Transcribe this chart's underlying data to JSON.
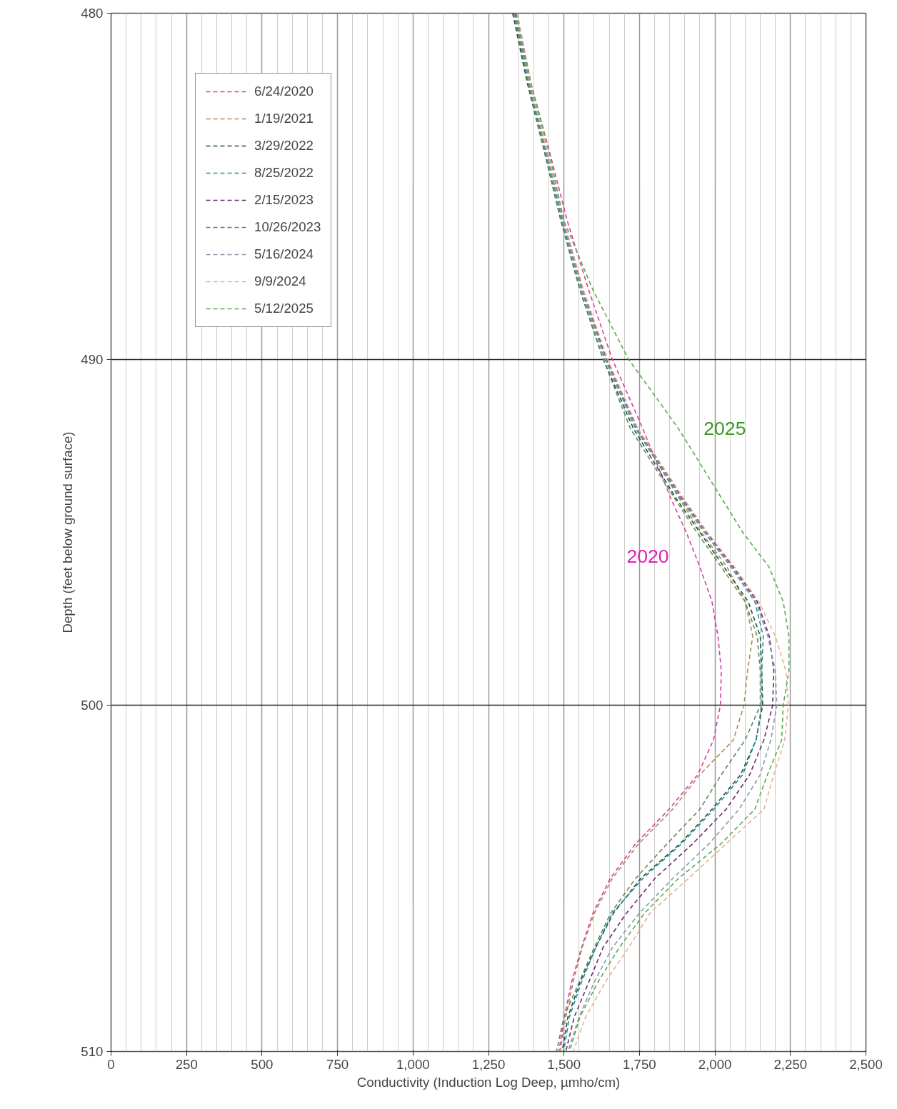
{
  "chart_data": {
    "type": "line",
    "xlabel": "Conductivity (Induction Log Deep, µmho/cm)",
    "ylabel": "Depth (feet below ground surface)",
    "xlim": [
      0,
      2500
    ],
    "ylim": [
      510,
      480
    ],
    "xticks": [
      0,
      250,
      500,
      750,
      {
        "value": 1000,
        "label": "1,000"
      },
      {
        "value": 1250,
        "label": "1,250"
      },
      {
        "value": 1500,
        "label": "1,500"
      },
      {
        "value": 1750,
        "label": "1,750"
      },
      {
        "value": 2000,
        "label": "2,000"
      },
      {
        "value": 2250,
        "label": "2,250"
      },
      {
        "value": 2500,
        "label": "2,500"
      }
    ],
    "yticks": [
      480,
      490,
      500,
      510
    ],
    "grid": true,
    "legend": "top left",
    "line_style": "dashed",
    "marker": "none",
    "annotations": [
      "2025",
      "2020"
    ],
    "series": [
      {
        "name": "6/24/2020",
        "color": "#d63ca5",
        "x": [
          1345,
          1390,
          1452,
          1511,
          1582,
          1660,
          1761,
          1853,
          1905,
          1950,
          1990,
          2010,
          2021,
          2018,
          1995,
          1943,
          1848,
          1737,
          1653,
          1596,
          1558,
          1525,
          1501,
          1483
        ],
        "values": [
          480,
          482,
          484,
          486,
          488,
          490,
          492,
          494,
          495,
          496,
          497,
          498,
          499,
          500,
          501,
          502,
          503,
          504,
          505,
          506,
          507,
          508,
          509,
          510
        ]
      },
      {
        "name": "1/19/2021",
        "color": "#b08a50",
        "x": [
          1335,
          1380,
          1440,
          1497,
          1560,
          1640,
          1740,
          1880,
          1955,
          2040,
          2100,
          2125,
          2108,
          2096,
          2061,
          1950,
          1860,
          1747,
          1660,
          1601,
          1560,
          1530,
          1506,
          1487
        ],
        "values": [
          480,
          482,
          484,
          486,
          488,
          490,
          492,
          494,
          495,
          496,
          497,
          498,
          499,
          500,
          501,
          502,
          503,
          504,
          505,
          506,
          507,
          508,
          509,
          510
        ]
      },
      {
        "name": "3/29/2022",
        "color": "#1f4e3d",
        "x": [
          1330,
          1378,
          1435,
          1490,
          1553,
          1630,
          1730,
          1870,
          1950,
          2030,
          2110,
          2150,
          2155,
          2158,
          2136,
          2085,
          1990,
          1884,
          1754,
          1664,
          1605,
          1553,
          1513,
          1494
        ],
        "values": [
          480,
          482,
          484,
          486,
          488,
          490,
          492,
          494,
          495,
          496,
          497,
          498,
          499,
          500,
          501,
          502,
          503,
          504,
          505,
          506,
          507,
          508,
          509,
          510
        ]
      },
      {
        "name": "8/25/2022",
        "color": "#2a8fa0",
        "x": [
          1338,
          1383,
          1440,
          1494,
          1558,
          1636,
          1737,
          1884,
          1965,
          2053,
          2132,
          2160,
          2155,
          2155,
          2136,
          2092,
          1997,
          1889,
          1761,
          1660,
          1605,
          1558,
          1518,
          1499
        ],
        "values": [
          480,
          482,
          484,
          486,
          488,
          490,
          492,
          494,
          495,
          496,
          497,
          498,
          499,
          500,
          501,
          502,
          503,
          504,
          505,
          506,
          507,
          508,
          509,
          510
        ]
      },
      {
        "name": "2/15/2023",
        "color": "#6a2a6a",
        "x": [
          1342,
          1386,
          1444,
          1498,
          1562,
          1640,
          1742,
          1890,
          1972,
          2060,
          2140,
          2180,
          2195,
          2191,
          2162,
          2115,
          2037,
          1926,
          1801,
          1707,
          1629,
          1582,
          1534,
          1506
        ],
        "values": [
          480,
          482,
          484,
          486,
          488,
          490,
          492,
          494,
          495,
          496,
          497,
          498,
          499,
          500,
          501,
          502,
          503,
          504,
          505,
          506,
          507,
          508,
          509,
          510
        ]
      },
      {
        "name": "10/26/2023",
        "color": "#5f8a5a",
        "x": [
          1335,
          1380,
          1436,
          1490,
          1553,
          1630,
          1720,
          1865,
          1940,
          2021,
          2100,
          2140,
          2150,
          2150,
          2100,
          2021,
          1950,
          1841,
          1737,
          1655,
          1600,
          1550,
          1500,
          1475
        ],
        "values": [
          480,
          482,
          484,
          486,
          488,
          490,
          492,
          494,
          495,
          496,
          497,
          498,
          499,
          500,
          501,
          502,
          503,
          504,
          505,
          506,
          507,
          508,
          509,
          510
        ]
      },
      {
        "name": "5/16/2024",
        "color": "#8899aa",
        "x": [
          1340,
          1385,
          1442,
          1497,
          1560,
          1638,
          1740,
          1887,
          1968,
          2055,
          2135,
          2175,
          2200,
          2205,
          2185,
          2150,
          2080,
          1980,
          1860,
          1750,
          1660,
          1600,
          1550,
          1513
        ],
        "values": [
          480,
          482,
          484,
          486,
          488,
          490,
          492,
          494,
          495,
          496,
          497,
          498,
          499,
          500,
          501,
          502,
          503,
          504,
          505,
          506,
          507,
          508,
          509,
          510
        ]
      },
      {
        "name": "9/9/2024",
        "color": "#e8b090",
        "x": [
          1345,
          1388,
          1445,
          1500,
          1565,
          1645,
          1745,
          1895,
          1975,
          2065,
          2145,
          2200,
          2235,
          2243,
          2231,
          2195,
          2162,
          2037,
          1912,
          1785,
          1714,
          1636,
          1572,
          1530
        ],
        "values": [
          480,
          482,
          484,
          486,
          488,
          490,
          492,
          494,
          495,
          496,
          497,
          498,
          499,
          500,
          501,
          502,
          503,
          504,
          505,
          506,
          507,
          508,
          509,
          510
        ]
      },
      {
        "name": "5/12/2025",
        "color": "#5aaa50",
        "x": [
          1340,
          1390,
          1450,
          1500,
          1596,
          1714,
          1879,
          2021,
          2092,
          2179,
          2226,
          2245,
          2245,
          2226,
          2221,
          2174,
          2132,
          2020,
          1879,
          1767,
          1683,
          1612,
          1553,
          1518
        ],
        "values": [
          480,
          482,
          484,
          486,
          488,
          490,
          492,
          494,
          495,
          496,
          497,
          498,
          499,
          500,
          501,
          502,
          503,
          504,
          505,
          506,
          507,
          508,
          509,
          510
        ]
      }
    ]
  }
}
